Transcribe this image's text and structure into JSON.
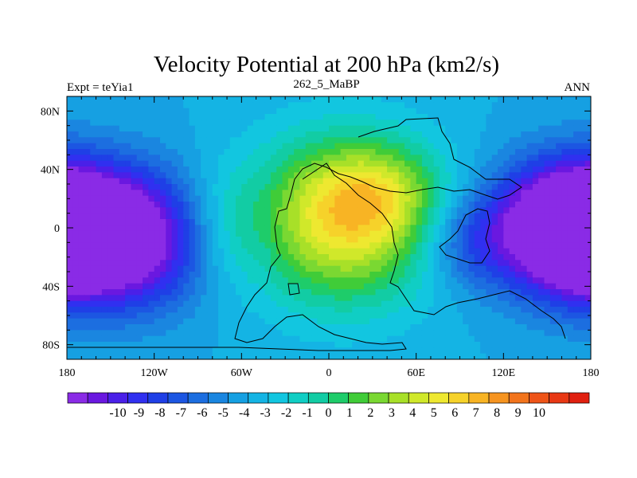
{
  "chart_data": {
    "type": "heatmap",
    "title": "Velocity Potential at 200 hPa (km2/s)",
    "left_label": "Expt = teYia1",
    "center_label": "262_5_MaBP",
    "right_label": "ANN",
    "x_ticks": [
      "180",
      "120W",
      "60W",
      "0",
      "60E",
      "120E",
      "180"
    ],
    "x_tick_values": [
      -180,
      -120,
      -60,
      0,
      60,
      120,
      180
    ],
    "y_ticks": [
      "80N",
      "40N",
      "0",
      "40S",
      "80S"
    ],
    "y_tick_values": [
      80,
      40,
      0,
      -40,
      -80
    ],
    "xlim": [
      -180,
      180
    ],
    "ylim": [
      -90,
      90
    ],
    "colorbar": {
      "labels": [
        "-10",
        "-9",
        "-8",
        "-7",
        "-6",
        "-5",
        "-4",
        "-3",
        "-2",
        "-1",
        "0",
        "1",
        "2",
        "3",
        "4",
        "5",
        "6",
        "7",
        "8",
        "9",
        "10"
      ],
      "levels": [
        -10,
        -9,
        -8,
        -7,
        -6,
        -5,
        -4,
        -3,
        -2,
        -1,
        0,
        1,
        2,
        3,
        4,
        5,
        6,
        7,
        8,
        9,
        10
      ],
      "colors": [
        "#8a2be6",
        "#6a18e0",
        "#4a20e8",
        "#3030f0",
        "#1f3fe6",
        "#1c56e2",
        "#1c6ee0",
        "#1a86e0",
        "#16a0e2",
        "#14b4e4",
        "#12c6e0",
        "#10cec4",
        "#12cca4",
        "#1ecc6a",
        "#40cc38",
        "#7ad832",
        "#a8e028",
        "#d0e82a",
        "#eee830",
        "#f6d22a",
        "#f8b424",
        "#f69420",
        "#f2741c",
        "#ee5418",
        "#e83814",
        "#e02010"
      ]
    },
    "field_centers": [
      {
        "lon": 10,
        "lat": 5,
        "value": 9.7,
        "spread_lon": 45,
        "spread_lat": 40
      },
      {
        "lon": 35,
        "lat": 25,
        "value": 3.5,
        "spread_lon": 30,
        "spread_lat": 22
      },
      {
        "lon": -170,
        "lat": 0,
        "value": -10.5,
        "spread_lon": 40,
        "spread_lat": 30
      },
      {
        "lon": 170,
        "lat": 0,
        "value": -10.5,
        "spread_lon": 40,
        "spread_lat": 30
      },
      {
        "lon": -140,
        "lat": -25,
        "value": -3.5,
        "spread_lon": 40,
        "spread_lat": 28
      },
      {
        "lon": 95,
        "lat": -10,
        "value": -3.2,
        "spread_lon": 22,
        "spread_lat": 22
      }
    ],
    "background_value": -2.0
  }
}
